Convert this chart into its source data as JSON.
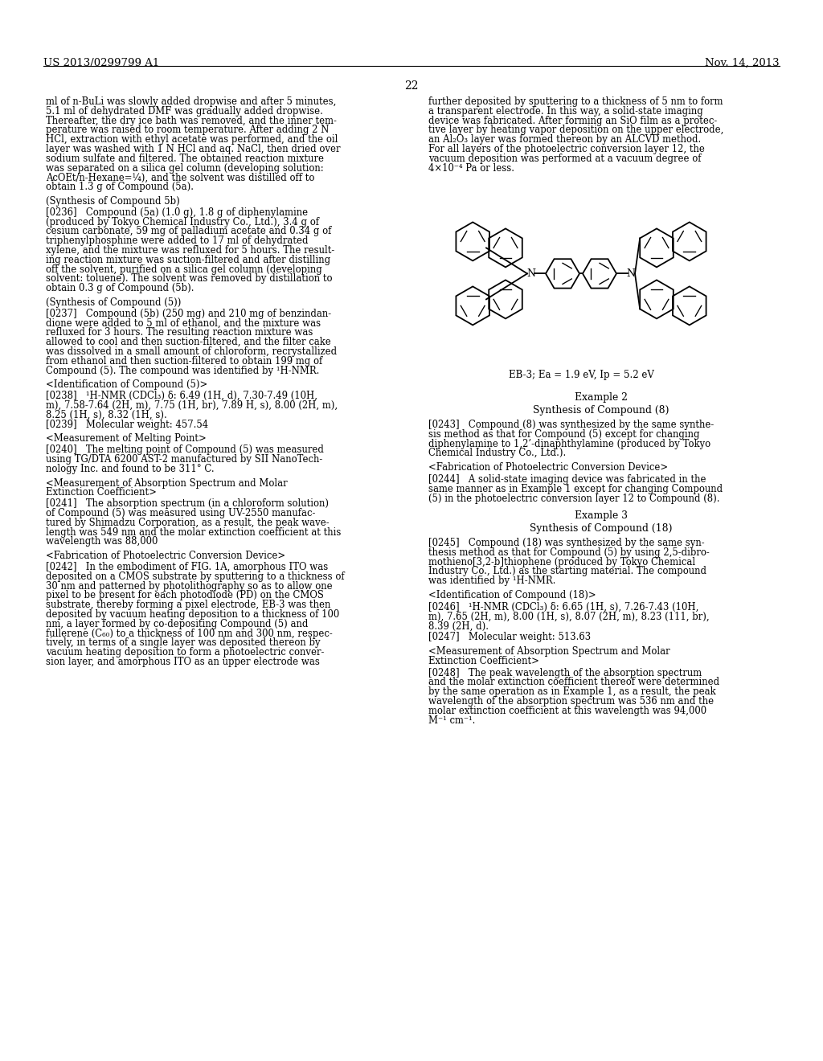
{
  "page_number": "22",
  "patent_number": "US 2013/0299799 A1",
  "patent_date": "Nov. 14, 2013",
  "background_color": "#ffffff",
  "text_color": "#000000",
  "left_column_text": [
    "ml of n-BuLi was slowly added dropwise and after 5 minutes,",
    "5.1 ml of dehydrated DMF was gradually added dropwise.",
    "Thereafter, the dry ice bath was removed, and the inner tem-",
    "perature was raised to room temperature. After adding 2 N",
    "HCl, extraction with ethyl acetate was performed, and the oil",
    "layer was washed with 1 N HCl and aq. NaCl, then dried over",
    "sodium sulfate and filtered. The obtained reaction mixture",
    "was separated on a silica gel column (developing solution:",
    "AcOEt/n-Hexane=¼), and the solvent was distilled off to",
    "obtain 1.3 g of Compound (5a)."
  ],
  "left_col_paragraph2_header": "(Synthesis of Compound 5b)",
  "left_col_paragraph2": [
    "[0236]   Compound (5a) (1.0 g), 1.8 g of diphenylamine",
    "(produced by Tokyo Chemical Industry Co., Ltd.), 3.4 g of",
    "cesium carbonate, 59 mg of palladium acetate and 0.34 g of",
    "triphenylphosphine were added to 17 ml of dehydrated",
    "xylene, and the mixture was refluxed for 5 hours. The result-",
    "ing reaction mixture was suction-filtered and after distilling",
    "off the solvent, purified on a silica gel column (developing",
    "solvent: toluene). The solvent was removed by distillation to",
    "obtain 0.3 g of Compound (5b)."
  ],
  "left_col_paragraph3_header": "(Synthesis of Compound (5))",
  "left_col_paragraph3": [
    "[0237]   Compound (5b) (250 mg) and 210 mg of benzindan-",
    "dione were added to 5 ml of ethanol, and the mixture was",
    "refluxed for 3 hours. The resulting reaction mixture was",
    "allowed to cool and then suction-filtered, and the filter cake",
    "was dissolved in a small amount of chloroform, recrystallized",
    "from ethanol and then suction-filtered to obtain 199 mg of",
    "Compound (5). The compound was identified by ¹H-NMR."
  ],
  "left_col_paragraph4_header": "<Identification of Compound (5)>",
  "left_col_paragraph4_lines": [
    "[0238]   ¹H-NMR (CDCl₃) δ: 6.49 (1H, d), 7.30-7.49 (10H,",
    "m), 7.58-7.64 (2H, m), 7.75 (1H, br), 7.89 H, s), 8.00 (2H, m),",
    "8.25 (1H, s), 8.32 (1H, s).",
    "[0239]   Molecular weight: 457.54"
  ],
  "left_col_paragraph5_header": "<Measurement of Melting Point>",
  "left_col_paragraph5_lines": [
    "[0240]   The melting point of Compound (5) was measured",
    "using TG/DTA 6200 AST-2 manufactured by SII NanoTech-",
    "nology Inc. and found to be 311° C."
  ],
  "left_col_paragraph6_header1": "<Measurement of Absorption Spectrum and Molar",
  "left_col_paragraph6_header2": "Extinction Coefficient>",
  "left_col_paragraph6_lines": [
    "[0241]   The absorption spectrum (in a chloroform solution)",
    "of Compound (5) was measured using UV-2550 manufac-",
    "tured by Shimadzu Corporation, as a result, the peak wave-",
    "length was 549 nm and the molar extinction coefficient at this",
    "wavelength was 88,000"
  ],
  "left_col_paragraph7_header": "<Fabrication of Photoelectric Conversion Device>",
  "left_col_paragraph7_lines": [
    "[0242]   In the embodiment of FIG. 1A, amorphous ITO was",
    "deposited on a CMOS substrate by sputtering to a thickness of",
    "30 nm and patterned by photolithography so as to allow one",
    "pixel to be present for each photodiode (PD) on the CMOS",
    "substrate, thereby forming a pixel electrode, EB-3 was then",
    "deposited by vacuum heating deposition to a thickness of 100",
    "nm, a layer formed by co-depositing Compound (5) and",
    "fullerene (C₆₀) to a thickness of 100 nm and 300 nm, respec-",
    "tively, in terms of a single layer was deposited thereon by",
    "vacuum heating deposition to form a photoelectric conver-",
    "sion layer, and amorphous ITO as an upper electrode was"
  ],
  "right_col_paragraph1_lines": [
    "further deposited by sputtering to a thickness of 5 nm to form",
    "a transparent electrode. In this way, a solid-state imaging",
    "device was fabricated. After forming an SiO film as a protec-",
    "tive layer by heating vapor deposition on the upper electrode,",
    "an Al₂O₃ layer was formed thereon by an ALCVD method.",
    "For all layers of the photoelectric conversion layer 12, the",
    "vacuum deposition was performed at a vacuum degree of",
    "4×10⁻⁴ Pa or less."
  ],
  "chemical_label": "EB-3; Ea = 1.9 eV, Ip = 5.2 eV",
  "example2_header": "Example 2",
  "example2_subheader": "Synthesis of Compound (8)",
  "p0243_lines": [
    "[0243]   Compound (8) was synthesized by the same synthe-",
    "sis method as that for Compound (5) except for changing",
    "diphenylamine to 1,2’-dinaphthylamine (produced by Tokyo",
    "Chemical Industry Co., Ltd.)."
  ],
  "right_fab_header": "<Fabrication of Photoelectric Conversion Device>",
  "p0244_lines": [
    "[0244]   A solid-state imaging device was fabricated in the",
    "same manner as in Example 1 except for changing Compound",
    "(5) in the photoelectric conversion layer 12 to Compound (8)."
  ],
  "example3_header": "Example 3",
  "example3_subheader": "Synthesis of Compound (18)",
  "p0245_lines": [
    "[0245]   Compound (18) was synthesized by the same syn-",
    "thesis method as that for Compound (5) by using 2,5-dibro-",
    "mothieno[3,2-b]thiophene (produced by Tokyo Chemical",
    "Industry Co., Ltd.) as the starting material. The compound",
    "was identified by ¹H-NMR."
  ],
  "right_id_header": "<Identification of Compound (18)>",
  "p0246_lines": [
    "[0246]   ¹H-NMR (CDCl₃) δ: 6.65 (1H, s), 7.26-7.43 (10H,",
    "m), 7.65 (2H, m), 8.00 (1H, s), 8.07 (2H, m), 8.23 (111, br),",
    "8.39 (2H, d)."
  ],
  "p0247": "[0247]   Molecular weight: 513.63",
  "right_abs_header1": "<Measurement of Absorption Spectrum and Molar",
  "right_abs_header2": "Extinction Coefficient>",
  "p0248_lines": [
    "[0248]   The peak wavelength of the absorption spectrum",
    "and the molar extinction coefficient thereof were determined",
    "by the same operation as in Example 1, as a result, the peak",
    "wavelength of the absorption spectrum was 536 nm and the",
    "molar extinction coefficient at this wavelength was 94,000",
    "M⁻¹ cm⁻¹."
  ]
}
